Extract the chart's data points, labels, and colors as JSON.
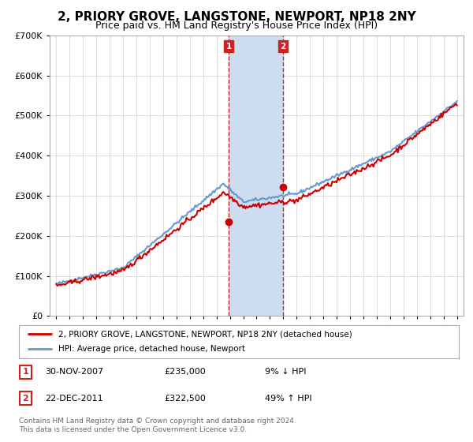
{
  "title": "2, PRIORY GROVE, LANGSTONE, NEWPORT, NP18 2NY",
  "subtitle": "Price paid vs. HM Land Registry's House Price Index (HPI)",
  "ylim": [
    0,
    700000
  ],
  "yticks": [
    0,
    100000,
    200000,
    300000,
    400000,
    500000,
    600000,
    700000
  ],
  "ytick_labels": [
    "£0",
    "£100K",
    "£200K",
    "£300K",
    "£400K",
    "£500K",
    "£600K",
    "£700K"
  ],
  "xlim_start": 1994.5,
  "xlim_end": 2025.5,
  "sale1_date": 2007.917,
  "sale1_price": 235000,
  "sale1_label": "1",
  "sale2_date": 2011.972,
  "sale2_price": 322500,
  "sale2_label": "2",
  "legend_line1": "2, PRIORY GROVE, LANGSTONE, NEWPORT, NP18 2NY (detached house)",
  "legend_line2": "HPI: Average price, detached house, Newport",
  "footnote": "Contains HM Land Registry data © Crown copyright and database right 2024.\nThis data is licensed under the Open Government Licence v3.0.",
  "line_color_red": "#cc0000",
  "line_color_blue": "#6699cc",
  "shade_color": "#ccddf0",
  "marker_box_color": "#cc2222",
  "grid_color": "#dddddd",
  "background_color": "#ffffff"
}
